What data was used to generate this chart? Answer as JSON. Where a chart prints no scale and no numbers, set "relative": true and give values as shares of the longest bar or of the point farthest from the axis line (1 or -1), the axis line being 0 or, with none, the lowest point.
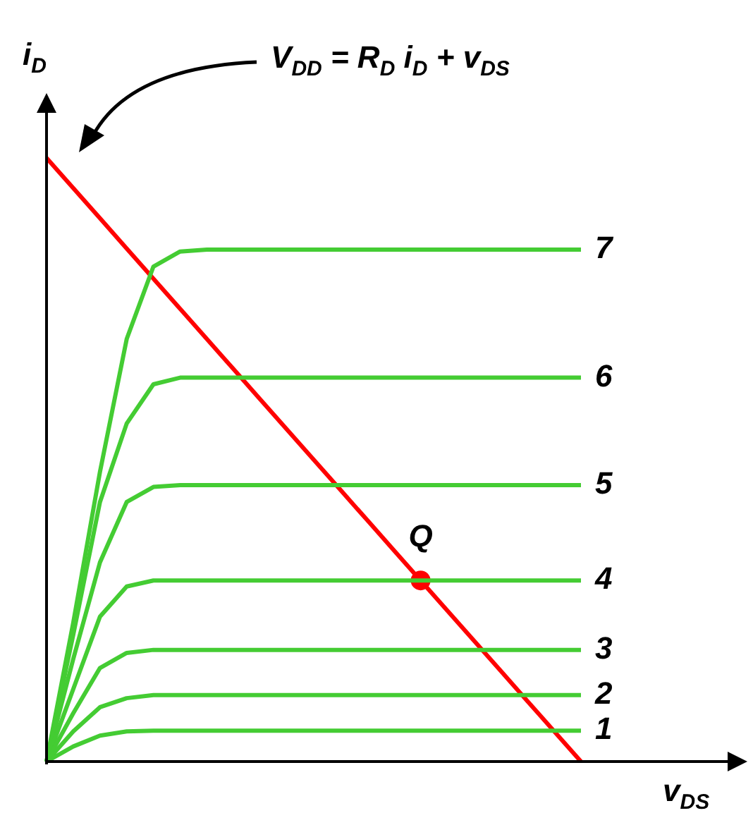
{
  "chart_data": {
    "type": "line",
    "relative": true,
    "xlabel": "v$_{DS}$",
    "ylabel": "i$_{D}$",
    "legend": false,
    "marker": "none",
    "line_style": "solid",
    "annotations": [
      "V$_{DD}$ = R$_{D}$ i$_{D}$ + v$_{DS}$"
    ],
    "categories": [
      null,
      null,
      null,
      null,
      null,
      null,
      null,
      null,
      null,
      null,
      null,
      null,
      null,
      null,
      null,
      null,
      null,
      null,
      null,
      null,
      null
    ],
    "series": [
      {
        "name": "1",
        "color": "#44cc33",
        "values": [
          0,
          0.025,
          0.043,
          0.05,
          0.051,
          0.051,
          0.051,
          0.051,
          0.051,
          0.051,
          0.051,
          0.051,
          0.051,
          0.051,
          0.051,
          0.051,
          0.051,
          0.051,
          0.051,
          0.051,
          0.051
        ]
      },
      {
        "name": "2",
        "color": "#44cc33",
        "values": [
          0,
          0.05,
          0.09,
          0.105,
          0.11,
          0.11,
          0.11,
          0.11,
          0.11,
          0.11,
          0.11,
          0.11,
          0.11,
          0.11,
          0.11,
          0.11,
          0.11,
          0.11,
          0.11,
          0.11,
          0.11
        ]
      },
      {
        "name": "3",
        "color": "#44cc33",
        "values": [
          0,
          0.08,
          0.155,
          0.18,
          0.185,
          0.185,
          0.185,
          0.185,
          0.185,
          0.185,
          0.185,
          0.185,
          0.185,
          0.185,
          0.185,
          0.185,
          0.185,
          0.185,
          0.185,
          0.185,
          0.185
        ]
      },
      {
        "name": "4",
        "color": "#44cc33",
        "values": [
          0,
          0.12,
          0.24,
          0.29,
          0.3,
          0.3,
          0.3,
          0.3,
          0.3,
          0.3,
          0.3,
          0.3,
          0.3,
          0.3,
          0.3,
          0.3,
          0.3,
          0.3,
          0.3,
          0.3,
          0.3
        ]
      },
      {
        "name": "5",
        "color": "#44cc33",
        "values": [
          0,
          0.17,
          0.33,
          0.43,
          0.455,
          0.458,
          0.458,
          0.458,
          0.458,
          0.458,
          0.458,
          0.458,
          0.458,
          0.458,
          0.458,
          0.458,
          0.458,
          0.458,
          0.458,
          0.458,
          0.458
        ]
      },
      {
        "name": "6",
        "color": "#44cc33",
        "values": [
          0,
          0.21,
          0.43,
          0.56,
          0.625,
          0.636,
          0.636,
          0.636,
          0.636,
          0.636,
          0.636,
          0.636,
          0.636,
          0.636,
          0.636,
          0.636,
          0.636,
          0.636,
          0.636,
          0.636,
          0.636
        ]
      },
      {
        "name": "7",
        "color": "#44cc33",
        "values": [
          0,
          0.23,
          0.48,
          0.7,
          0.82,
          0.845,
          0.848,
          0.848,
          0.848,
          0.848,
          0.848,
          0.848,
          0.848,
          0.848,
          0.848,
          0.848,
          0.848,
          0.848,
          0.848,
          0.848,
          0.848
        ]
      },
      {
        "color": "#ff0000",
        "values": [
          1,
          0.95,
          0.9,
          0.85,
          0.8,
          0.75,
          0.7,
          0.65,
          0.6,
          0.55,
          0.5,
          0.45,
          0.4,
          0.35,
          0.3,
          0.25,
          0.2,
          0.15,
          0.1,
          0.05,
          0
        ]
      },
      {
        "name": "Q",
        "marker": "circle",
        "color": "#ff0000",
        "values": [
          null,
          null,
          null,
          null,
          null,
          null,
          null,
          null,
          null,
          null,
          null,
          null,
          null,
          null,
          0.3,
          null,
          null,
          null,
          null,
          null,
          null
        ]
      }
    ]
  }
}
